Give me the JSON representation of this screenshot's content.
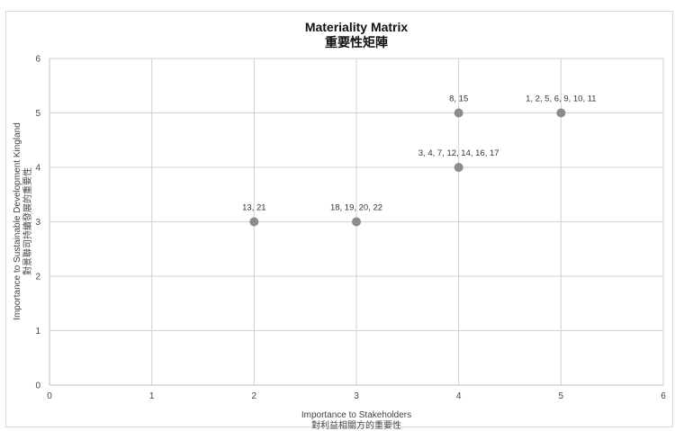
{
  "chart_data": {
    "type": "scatter",
    "title": "Materiality Matrix",
    "subtitle": "重要性矩陣",
    "xlabel": "Importance to Stakeholders",
    "xlabel_sub": "對利益相關方的重要性",
    "ylabel": "Importance to Sustainable Development Kingland",
    "ylabel_sub": "對景聯司持續發展的重要性",
    "xlim": [
      0,
      6
    ],
    "ylim": [
      0,
      6
    ],
    "x_ticks": [
      "0",
      "1",
      "2",
      "3",
      "4",
      "5",
      "6"
    ],
    "y_ticks": [
      "0",
      "1",
      "2",
      "3",
      "4",
      "5",
      "6"
    ],
    "grid": true,
    "color": "#8c8c8c",
    "points": [
      {
        "x": 2,
        "y": 3,
        "label": "13, 21"
      },
      {
        "x": 3,
        "y": 3,
        "label": "18, 19, 20, 22"
      },
      {
        "x": 4,
        "y": 4,
        "label": "3, 4, 7, 12, 14, 16, 17"
      },
      {
        "x": 4,
        "y": 5,
        "label": "8, 15"
      },
      {
        "x": 5,
        "y": 5,
        "label": "1, 2, 5, 6, 9, 10, 11"
      }
    ]
  }
}
